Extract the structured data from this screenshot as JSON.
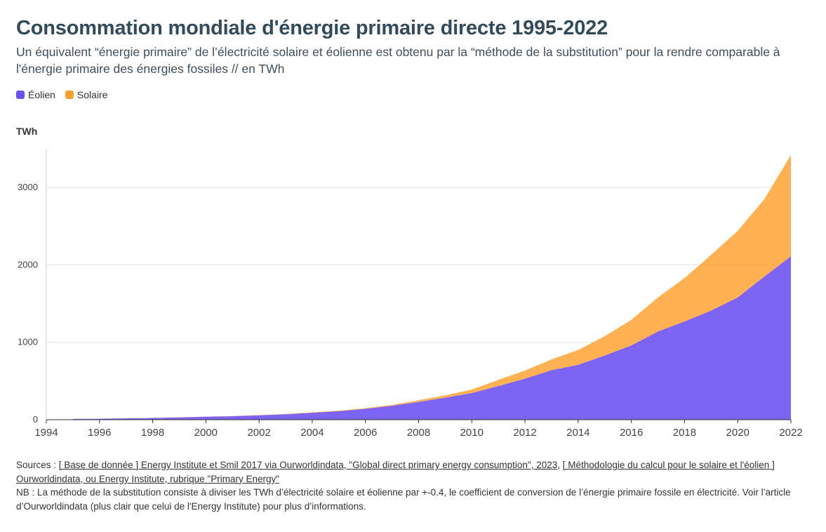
{
  "title": "Consommation mondiale d'énergie primaire directe 1995-2022",
  "subtitle": "Un équivalent “énergie primaire” de l’électricité solaire et éolienne est obtenu par la “méthode de la substitution” pour la rendre comparable à l'énergie primaire des énergies fossiles // en TWh",
  "legend": [
    {
      "label": "Éolien",
      "color": "#6c4ff0"
    },
    {
      "label": "Solaire",
      "color": "#ffa02e"
    }
  ],
  "unit_label": "TWh",
  "footer": {
    "sources_prefix": "Sources : ",
    "link1": "[ Base de donnée ] Energy Institute et Smil 2017 via Ourworldindata, \"Global direct primary energy consumption\", 2023",
    "sep": ", ",
    "link2": "[ Méthodologie du calcul pour le solaire et l'éolien ] Ourworldindata, ou Energy Institute, rubrique \"Primary Energy\"",
    "note": "NB : La méthode de la substitution consiste à diviser les TWh d’électricité solaire et éolienne par +-0.4, le coefficient de conversion de l’énergie primaire fossile en électricité. Voir l’article d’Ourworldindata (plus clair que celui de l'Energy Institute) pour plus d’informations."
  },
  "chart_data": {
    "type": "area",
    "stacked": true,
    "x": [
      1995,
      1996,
      1997,
      1998,
      1999,
      2000,
      2001,
      2002,
      2003,
      2004,
      2005,
      2006,
      2007,
      2008,
      2009,
      2010,
      2011,
      2012,
      2013,
      2014,
      2015,
      2016,
      2017,
      2018,
      2019,
      2020,
      2021,
      2022
    ],
    "series": [
      {
        "name": "Éolien",
        "color": "#6c4ff0",
        "values": [
          10,
          13,
          18,
          23,
          30,
          38,
          45,
          57,
          70,
          90,
          110,
          140,
          180,
          230,
          285,
          345,
          435,
          530,
          640,
          710,
          830,
          960,
          1140,
          1270,
          1410,
          1580,
          1850,
          2110
        ]
      },
      {
        "name": "Solaire",
        "color": "#ffa02e",
        "values": [
          1,
          1,
          1,
          1,
          2,
          2,
          3,
          3,
          4,
          5,
          7,
          9,
          12,
          20,
          30,
          45,
          80,
          105,
          140,
          190,
          250,
          330,
          440,
          560,
          720,
          860,
          1000,
          1310
        ]
      }
    ],
    "xlim": [
      1994,
      2022
    ],
    "ylim": [
      0,
      3500
    ],
    "xticks": [
      1994,
      1996,
      1998,
      2000,
      2002,
      2004,
      2006,
      2008,
      2010,
      2012,
      2014,
      2016,
      2018,
      2020,
      2022
    ],
    "yticks": [
      0,
      1000,
      2000,
      3000
    ],
    "grid": true,
    "legend_position": "top-left"
  }
}
